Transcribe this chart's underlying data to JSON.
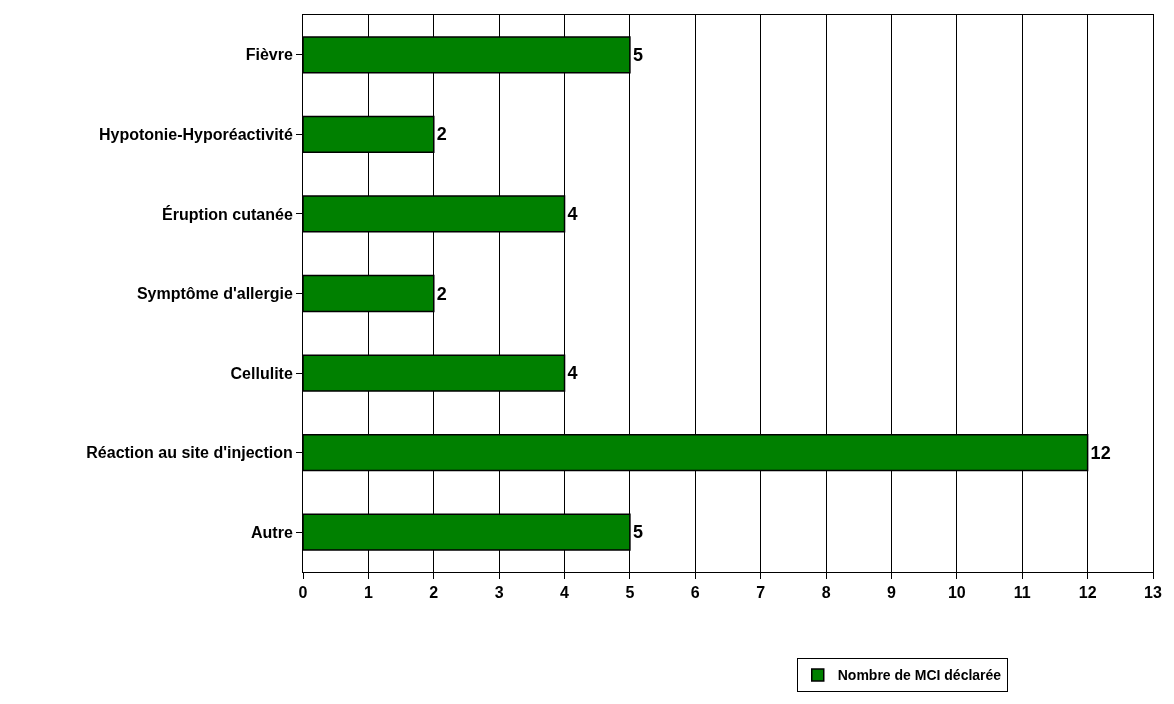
{
  "chart_data": {
    "type": "bar",
    "orientation": "horizontal",
    "categories": [
      "Fièvre",
      "Hypotonie-Hyporéactivité",
      "Éruption cutanée",
      "Symptôme d'allergie",
      "Cellulite",
      "Réaction au site d'injection",
      "Autre"
    ],
    "series": [
      {
        "name": "Nombre de MCI déclarée",
        "color": "#008000",
        "values": [
          5,
          2,
          4,
          2,
          4,
          12,
          5
        ]
      }
    ],
    "xlim": [
      0,
      13
    ],
    "xticks": [
      0,
      1,
      2,
      3,
      4,
      5,
      6,
      7,
      8,
      9,
      10,
      11,
      12,
      13
    ],
    "grid": "x",
    "legend": "bottom",
    "data_labels": true
  }
}
